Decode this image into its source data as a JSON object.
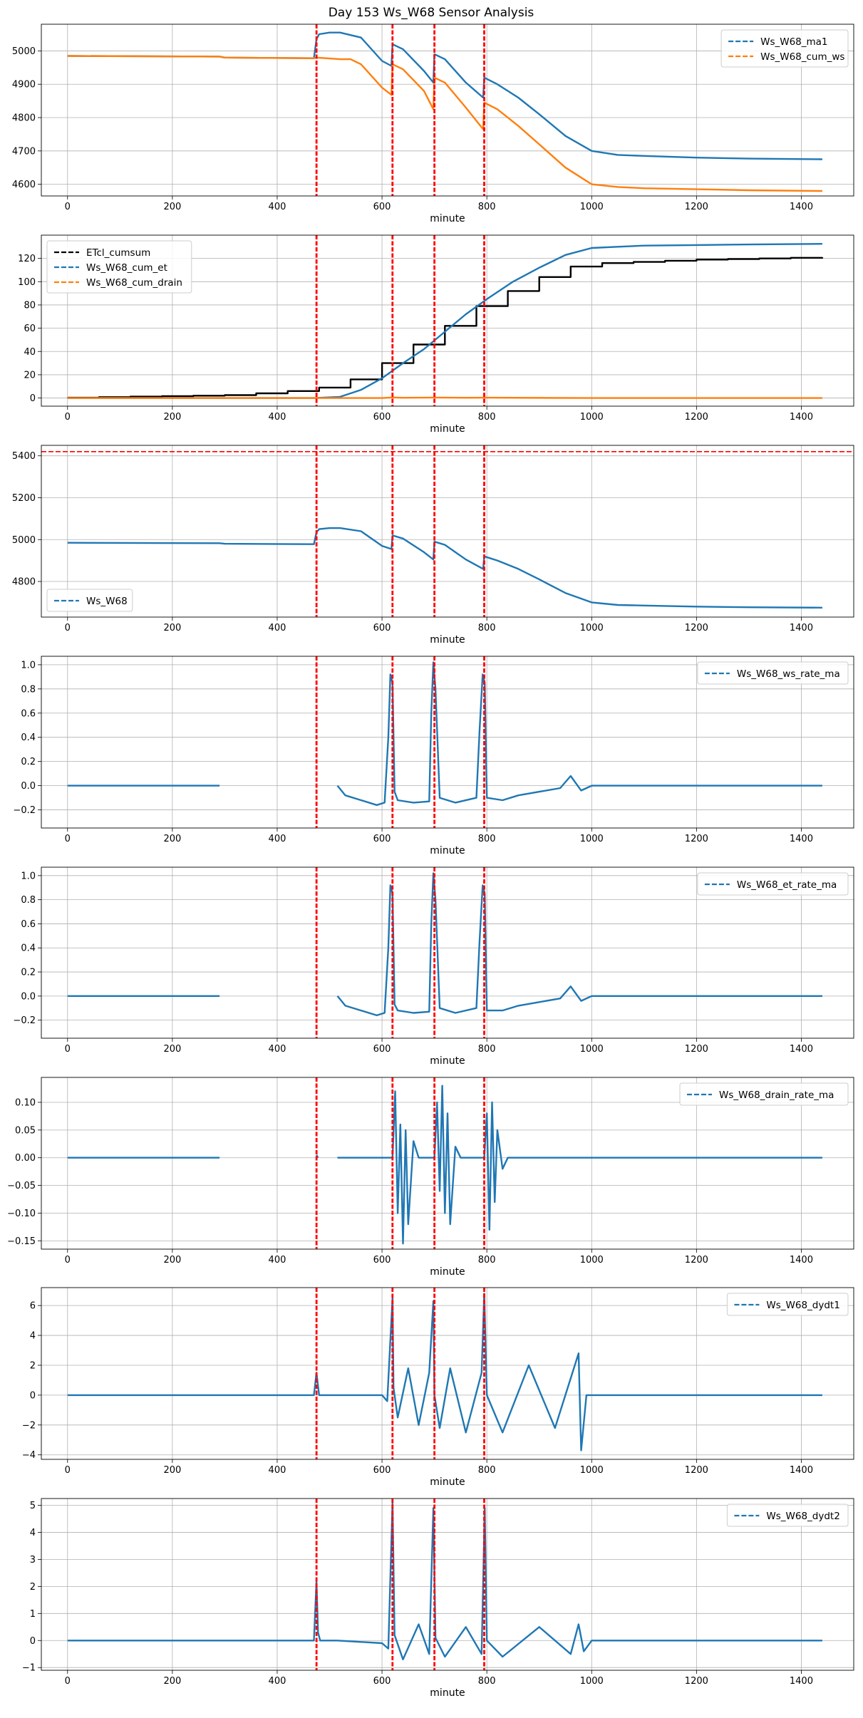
{
  "title": "Day 153 Ws_W68 Sensor Analysis",
  "colors": {
    "blue": "#1f77b4",
    "orange": "#ff7f0e",
    "black": "#000000",
    "red": "#ff0000",
    "grid": "#b0b0b0"
  },
  "event_lines_minute": [
    475,
    620,
    700,
    795
  ],
  "chart_data": [
    {
      "type": "line",
      "xlabel": "minute",
      "xlim": [
        -50,
        1500
      ],
      "xticks": [
        0,
        200,
        400,
        600,
        800,
        1000,
        1200,
        1400
      ],
      "ylim": [
        4565,
        5080
      ],
      "yticks": [
        4600,
        4700,
        4800,
        4900,
        5000
      ],
      "legend_position": "top-right",
      "series": [
        {
          "name": "Ws_W68_ma1",
          "color": "blue",
          "x": [
            0,
            290,
            300,
            470,
            475,
            480,
            500,
            520,
            560,
            600,
            618,
            620,
            640,
            680,
            698,
            700,
            720,
            760,
            793,
            795,
            820,
            860,
            900,
            950,
            1000,
            1050,
            1100,
            1200,
            1300,
            1440
          ],
          "y": [
            4985,
            4983,
            4980,
            4978,
            5035,
            5050,
            5055,
            5055,
            5040,
            4970,
            4955,
            5020,
            5005,
            4940,
            4905,
            4990,
            4975,
            4905,
            4860,
            4920,
            4900,
            4860,
            4810,
            4745,
            4700,
            4688,
            4685,
            4680,
            4677,
            4675
          ]
        },
        {
          "name": "Ws_W68_cum_ws",
          "color": "orange",
          "x": [
            0,
            290,
            300,
            470,
            475,
            520,
            540,
            560,
            600,
            618,
            620,
            640,
            680,
            698,
            700,
            720,
            760,
            793,
            795,
            820,
            860,
            900,
            950,
            1000,
            1050,
            1100,
            1200,
            1300,
            1440
          ],
          "y": [
            4985,
            4983,
            4980,
            4978,
            4980,
            4975,
            4975,
            4960,
            4890,
            4868,
            4960,
            4945,
            4880,
            4825,
            4920,
            4905,
            4830,
            4765,
            4845,
            4825,
            4775,
            4720,
            4650,
            4600,
            4592,
            4588,
            4585,
            4582,
            4580
          ]
        }
      ]
    },
    {
      "type": "line",
      "xlabel": "minute",
      "xlim": [
        -50,
        1500
      ],
      "xticks": [
        0,
        200,
        400,
        600,
        800,
        1000,
        1200,
        1400
      ],
      "ylim": [
        -7,
        140
      ],
      "yticks": [
        0,
        20,
        40,
        60,
        80,
        100,
        120
      ],
      "legend_position": "top-left",
      "series": [
        {
          "name": "ETcl_cumsum",
          "color": "black",
          "step": true,
          "x": [
            0,
            60,
            120,
            180,
            240,
            300,
            360,
            420,
            480,
            540,
            600,
            660,
            720,
            780,
            840,
            900,
            960,
            1020,
            1080,
            1140,
            1200,
            1260,
            1320,
            1380,
            1440
          ],
          "y": [
            0.3,
            0.8,
            1.2,
            1.6,
            2,
            2.5,
            4,
            6,
            9,
            16,
            30,
            46,
            62,
            79,
            92,
            104,
            113,
            116,
            117,
            118,
            119,
            119.5,
            120,
            120.5,
            121
          ]
        },
        {
          "name": "Ws_W68_cum_et",
          "color": "blue",
          "x": [
            0,
            300,
            470,
            520,
            560,
            600,
            640,
            680,
            720,
            760,
            800,
            850,
            900,
            950,
            1000,
            1050,
            1100,
            1200,
            1300,
            1440
          ],
          "y": [
            0,
            0,
            0,
            1,
            7,
            17,
            30,
            42,
            57,
            72,
            85,
            100,
            112,
            123,
            129,
            130,
            131,
            131.5,
            132,
            132.5
          ]
        },
        {
          "name": "Ws_W68_cum_drain",
          "color": "orange",
          "x": [
            0,
            600,
            620,
            640,
            700,
            760,
            800,
            1000,
            1440
          ],
          "y": [
            0,
            0,
            0.5,
            0.2,
            0.4,
            0.2,
            0.3,
            0,
            0
          ]
        }
      ]
    },
    {
      "type": "line",
      "xlabel": "minute",
      "xlim": [
        -50,
        1500
      ],
      "xticks": [
        0,
        200,
        400,
        600,
        800,
        1000,
        1200,
        1400
      ],
      "ylim": [
        4630,
        5450
      ],
      "yticks": [
        4800,
        5000,
        5200,
        5400
      ],
      "hline": 5420,
      "legend_position": "bottom-left",
      "series": [
        {
          "name": "Ws_W68",
          "color": "blue",
          "x": [
            0,
            290,
            300,
            470,
            475,
            480,
            500,
            520,
            560,
            600,
            618,
            620,
            640,
            680,
            698,
            700,
            720,
            760,
            793,
            795,
            820,
            860,
            900,
            950,
            1000,
            1050,
            1100,
            1200,
            1300,
            1440
          ],
          "y": [
            4985,
            4983,
            4980,
            4978,
            5035,
            5050,
            5055,
            5055,
            5040,
            4970,
            4955,
            5020,
            5005,
            4940,
            4905,
            4990,
            4975,
            4905,
            4860,
            4920,
            4900,
            4860,
            4810,
            4745,
            4700,
            4688,
            4685,
            4680,
            4677,
            4675
          ]
        }
      ]
    },
    {
      "type": "line",
      "xlabel": "minute",
      "xlim": [
        -50,
        1500
      ],
      "xticks": [
        0,
        200,
        400,
        600,
        800,
        1000,
        1200,
        1400
      ],
      "ylim": [
        -0.35,
        1.07
      ],
      "yticks": [
        -0.2,
        0.0,
        0.2,
        0.4,
        0.6,
        0.8,
        1.0
      ],
      "legend_position": "top-right",
      "series": [
        {
          "name": "Ws_W68_ws_rate_ma",
          "color": "blue",
          "x": [
            0,
            290,
            null,
            515,
            530,
            560,
            590,
            605,
            612,
            616,
            620,
            624,
            630,
            660,
            690,
            694,
            698,
            702,
            710,
            740,
            780,
            786,
            792,
            796,
            800,
            830,
            860,
            900,
            940,
            960,
            980,
            1000,
            1100,
            1200,
            1440
          ],
          "y": [
            0,
            0,
            null,
            0,
            -0.08,
            -0.12,
            -0.16,
            -0.14,
            0.4,
            0.92,
            0.85,
            -0.05,
            -0.12,
            -0.14,
            -0.13,
            0.6,
            1.02,
            0.8,
            -0.1,
            -0.14,
            -0.1,
            0.45,
            0.92,
            0.85,
            -0.1,
            -0.12,
            -0.08,
            -0.05,
            -0.02,
            0.08,
            -0.04,
            0,
            0,
            0,
            0
          ]
        }
      ]
    },
    {
      "type": "line",
      "xlabel": "minute",
      "xlim": [
        -50,
        1500
      ],
      "xticks": [
        0,
        200,
        400,
        600,
        800,
        1000,
        1200,
        1400
      ],
      "ylim": [
        -0.35,
        1.07
      ],
      "yticks": [
        -0.2,
        0.0,
        0.2,
        0.4,
        0.6,
        0.8,
        1.0
      ],
      "legend_position": "top-right",
      "series": [
        {
          "name": "Ws_W68_et_rate_ma",
          "color": "blue",
          "x": [
            0,
            290,
            null,
            515,
            530,
            560,
            590,
            605,
            612,
            616,
            620,
            624,
            630,
            660,
            690,
            694,
            698,
            702,
            710,
            740,
            780,
            786,
            792,
            796,
            800,
            830,
            860,
            900,
            940,
            960,
            980,
            1000,
            1100,
            1200,
            1440
          ],
          "y": [
            0,
            0,
            null,
            0,
            -0.08,
            -0.12,
            -0.16,
            -0.14,
            0.4,
            0.92,
            0.85,
            -0.07,
            -0.12,
            -0.14,
            -0.13,
            0.6,
            1.02,
            0.8,
            -0.1,
            -0.14,
            -0.1,
            0.45,
            0.92,
            0.85,
            -0.12,
            -0.12,
            -0.08,
            -0.05,
            -0.02,
            0.08,
            -0.04,
            0,
            0,
            0,
            0
          ]
        }
      ]
    },
    {
      "type": "line",
      "xlabel": "minute",
      "xlim": [
        -50,
        1500
      ],
      "xticks": [
        0,
        200,
        400,
        600,
        800,
        1000,
        1200,
        1400
      ],
      "ylim": [
        -0.165,
        0.145
      ],
      "yticks": [
        -0.15,
        -0.1,
        -0.05,
        0.0,
        0.05,
        0.1
      ],
      "legend_position": "top-right",
      "series": [
        {
          "name": "Ws_W68_drain_rate_ma",
          "color": "blue",
          "x": [
            0,
            290,
            null,
            475,
            478,
            null,
            515,
            620,
            625,
            630,
            635,
            640,
            645,
            650,
            660,
            670,
            700,
            705,
            710,
            715,
            720,
            725,
            730,
            740,
            750,
            795,
            800,
            805,
            810,
            815,
            820,
            830,
            840,
            1440
          ],
          "y": [
            0,
            0,
            null,
            0.005,
            0,
            null,
            0,
            0,
            0.12,
            -0.1,
            0.06,
            -0.155,
            0.05,
            -0.12,
            0.03,
            0,
            0,
            0.1,
            -0.06,
            0.13,
            -0.1,
            0.08,
            -0.12,
            0.02,
            0,
            0,
            0.08,
            -0.13,
            0.1,
            -0.08,
            0.05,
            -0.02,
            0,
            0
          ]
        }
      ]
    },
    {
      "type": "line",
      "xlabel": "minute",
      "xlim": [
        -50,
        1500
      ],
      "xticks": [
        0,
        200,
        400,
        600,
        800,
        1000,
        1200,
        1400
      ],
      "ylim": [
        -4.3,
        7.2
      ],
      "yticks": [
        -4,
        -2,
        0,
        2,
        4,
        6
      ],
      "legend_position": "top-right",
      "series": [
        {
          "name": "Ws_W68_dydt1",
          "color": "blue",
          "x": [
            0,
            290,
            300,
            470,
            475,
            480,
            515,
            600,
            610,
            620,
            622,
            630,
            650,
            670,
            690,
            698,
            700,
            710,
            730,
            760,
            790,
            795,
            800,
            830,
            880,
            930,
            975,
            980,
            990,
            1100,
            1200,
            1440
          ],
          "y": [
            0,
            0,
            0,
            0,
            1.5,
            0,
            0,
            0,
            -0.4,
            6.5,
            0.5,
            -1.5,
            1.8,
            -2,
            1.5,
            6.3,
            0,
            -2.2,
            1.8,
            -2.5,
            1.5,
            6.8,
            0,
            -2.5,
            2,
            -2.2,
            2.8,
            -3.7,
            0,
            0,
            0,
            0
          ]
        }
      ]
    },
    {
      "type": "line",
      "xlabel": "minute",
      "xlim": [
        -50,
        1500
      ],
      "xticks": [
        0,
        200,
        400,
        600,
        800,
        1000,
        1200,
        1400
      ],
      "ylim": [
        -1.1,
        5.25
      ],
      "yticks": [
        -1,
        0,
        1,
        2,
        3,
        4,
        5
      ],
      "legend_position": "top-right",
      "series": [
        {
          "name": "Ws_W68_dydt2",
          "color": "blue",
          "x": [
            0,
            290,
            300,
            470,
            475,
            478,
            482,
            515,
            600,
            612,
            620,
            624,
            640,
            670,
            690,
            698,
            702,
            720,
            760,
            790,
            796,
            800,
            830,
            900,
            960,
            975,
            985,
            1000,
            1100,
            1200,
            1440
          ],
          "y": [
            0,
            0,
            0,
            0,
            2.2,
            0.3,
            0,
            0,
            -0.1,
            -0.3,
            5.1,
            0.2,
            -0.7,
            0.6,
            -0.5,
            4.9,
            0.1,
            -0.6,
            0.5,
            -0.5,
            4.9,
            0,
            -0.6,
            0.5,
            -0.5,
            0.6,
            -0.4,
            0,
            0,
            0,
            0
          ]
        }
      ]
    }
  ]
}
